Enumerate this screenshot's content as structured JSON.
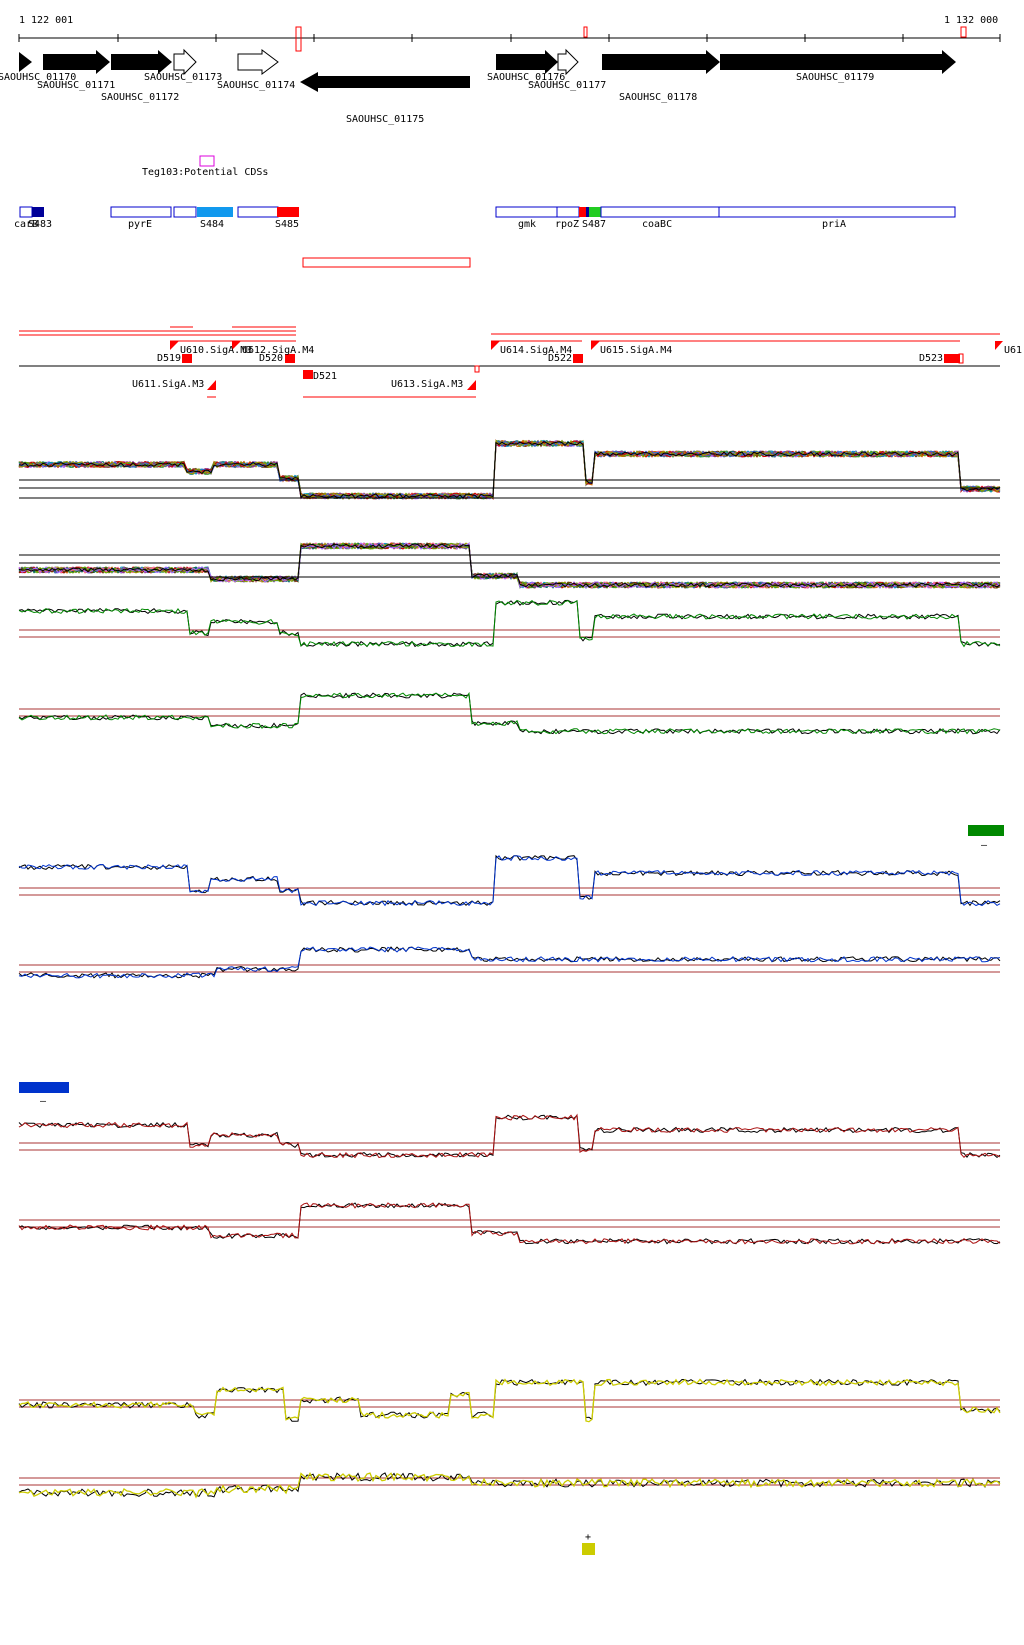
{
  "ruler": {
    "start_label": "1 122 001",
    "end_label": "1 132 000"
  },
  "genes": {
    "SAOUHSC_01170": "SAOUHSC_01170",
    "SAOUHSC_01171": "SAOUHSC_01171",
    "SAOUHSC_01172": "SAOUHSC_01172",
    "SAOUHSC_01173": "SAOUHSC_01173",
    "SAOUHSC_01174": "SAOUHSC_01174",
    "SAOUHSC_01175": "SAOUHSC_01175",
    "SAOUHSC_01176": "SAOUHSC_01176",
    "SAOUHSC_01177": "SAOUHSC_01177",
    "SAOUHSC_01178": "SAOUHSC_01178",
    "SAOUHSC_01179": "SAOUHSC_01179"
  },
  "teg_label": "Teg103:Potential CDSs",
  "regions": {
    "carb": "carB",
    "s483": "S483",
    "pyrE": "pyrE",
    "s484": "S484",
    "s485": "S485",
    "gmk": "gmk",
    "rpoZ": "rpoZ",
    "s487": "S487",
    "coaBC": "coaBC",
    "priA": "priA"
  },
  "promoters": {
    "u610": "U610.SigA.M3",
    "u612": "U612.SigA.M4",
    "u611": "U611.SigA.M3",
    "u613": "U613.SigA.M3",
    "u614": "U614.SigA.M4",
    "u615": "U615.SigA.M4",
    "u616": "U61"
  },
  "terminators": {
    "d519": "D519",
    "d520": "D520",
    "d521": "D521",
    "d522": "D522",
    "d523": "D523"
  },
  "legend_marks": {
    "green_minus": "–",
    "blue_minus": "–",
    "yellow_plus": "+"
  },
  "colors": {
    "gene_fill": "#000000",
    "region_outline": "#0000cc",
    "red": "#ff0000",
    "green": "#008800",
    "blue": "#0033cc",
    "darkred": "#aa1111",
    "yellow": "#cccc00",
    "cyan": "#1199ee",
    "navy": "#000099",
    "magenta": "#dd00dd",
    "threshold": "#aa3333"
  }
}
